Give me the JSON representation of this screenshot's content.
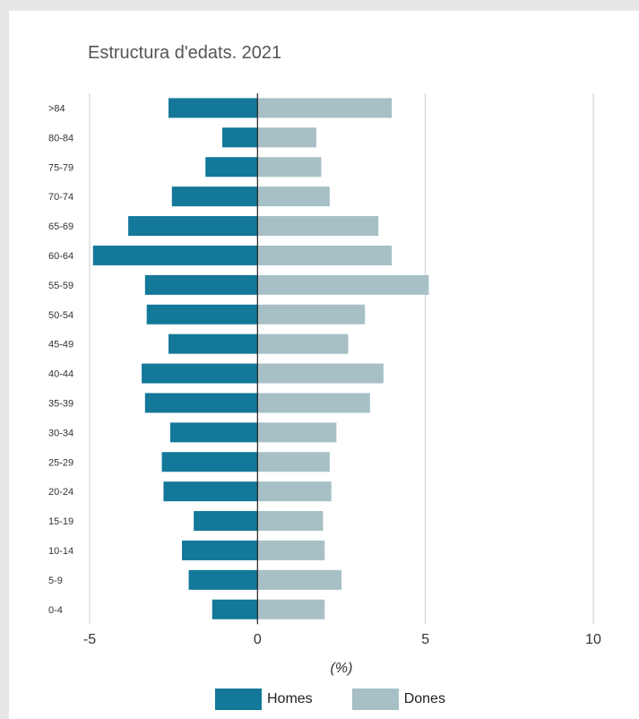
{
  "chart_data": {
    "type": "bar",
    "orientation": "horizontal",
    "title": "Estructura d'edats. 2021",
    "xlabel": "(%)",
    "ylabel": "",
    "xlim": [
      -5,
      10
    ],
    "xticks": [
      -5,
      0,
      5,
      10
    ],
    "grid": true,
    "legend_position": "bottom",
    "categories": [
      ">84",
      "80-84",
      "75-79",
      "70-74",
      "65-69",
      "60-64",
      "55-59",
      "50-54",
      "45-49",
      "40-44",
      "35-39",
      "30-34",
      "25-29",
      "20-24",
      "15-19",
      "10-14",
      "5-9",
      "0-4"
    ],
    "series": [
      {
        "name": "Homes",
        "color": "#13789a",
        "values": [
          -2.65,
          -1.05,
          -1.55,
          -2.55,
          -3.85,
          -4.9,
          -3.35,
          -3.3,
          -2.65,
          -3.45,
          -3.35,
          -2.6,
          -2.85,
          -2.8,
          -1.9,
          -2.25,
          -2.05,
          -1.35
        ]
      },
      {
        "name": "Dones",
        "color": "#a6c0c6",
        "values": [
          4.0,
          1.75,
          1.9,
          2.15,
          3.6,
          4.0,
          5.1,
          3.2,
          2.7,
          3.75,
          3.35,
          2.35,
          2.15,
          2.2,
          1.95,
          2.0,
          2.5,
          2.0
        ]
      }
    ]
  }
}
